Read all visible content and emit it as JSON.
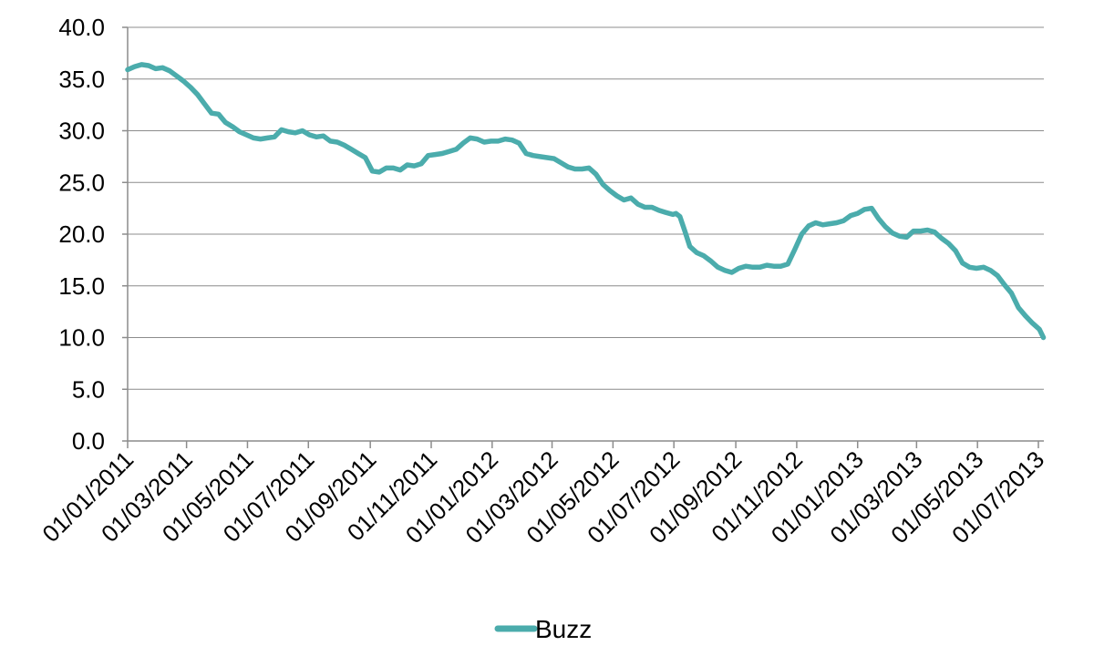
{
  "chart_data": {
    "type": "line",
    "title": "",
    "xlabel": "",
    "ylabel": "",
    "x_type": "date",
    "x_range": [
      "2011-01-01",
      "2013-07-01"
    ],
    "ylim": [
      0,
      40
    ],
    "y_ticks": [
      "0.0",
      "5.0",
      "10.0",
      "15.0",
      "20.0",
      "25.0",
      "30.0",
      "35.0",
      "40.0"
    ],
    "x_ticks": [
      "01/01/2011",
      "01/03/2011",
      "01/05/2011",
      "01/07/2011",
      "01/09/2011",
      "01/11/2011",
      "01/01/2012",
      "01/03/2012",
      "01/05/2012",
      "01/07/2012",
      "01/09/2012",
      "01/11/2012",
      "01/01/2013",
      "01/03/2013",
      "01/05/2013",
      "01/07/2013"
    ],
    "x_tick_dates": [
      "2011-01-01",
      "2011-03-01",
      "2011-05-01",
      "2011-07-01",
      "2011-09-01",
      "2011-11-01",
      "2012-01-01",
      "2012-03-01",
      "2012-05-01",
      "2012-07-01",
      "2012-09-01",
      "2012-11-01",
      "2013-01-01",
      "2013-03-01",
      "2013-05-01",
      "2013-07-01"
    ],
    "grid": true,
    "legend_position": "bottom",
    "series": [
      {
        "name": "Buzz",
        "color": "#4bacac",
        "points": [
          [
            "2011-01-01",
            35.9
          ],
          [
            "2011-01-08",
            36.2
          ],
          [
            "2011-01-15",
            36.4
          ],
          [
            "2011-01-22",
            36.3
          ],
          [
            "2011-01-29",
            36.0
          ],
          [
            "2011-02-05",
            36.1
          ],
          [
            "2011-02-12",
            35.8
          ],
          [
            "2011-02-19",
            35.3
          ],
          [
            "2011-02-26",
            34.8
          ],
          [
            "2011-03-05",
            34.2
          ],
          [
            "2011-03-12",
            33.5
          ],
          [
            "2011-03-19",
            32.6
          ],
          [
            "2011-03-26",
            31.7
          ],
          [
            "2011-04-02",
            31.6
          ],
          [
            "2011-04-09",
            30.8
          ],
          [
            "2011-04-16",
            30.4
          ],
          [
            "2011-04-23",
            29.9
          ],
          [
            "2011-04-30",
            29.6
          ],
          [
            "2011-05-07",
            29.3
          ],
          [
            "2011-05-14",
            29.2
          ],
          [
            "2011-05-21",
            29.3
          ],
          [
            "2011-05-28",
            29.4
          ],
          [
            "2011-06-04",
            30.1
          ],
          [
            "2011-06-11",
            29.9
          ],
          [
            "2011-06-18",
            29.8
          ],
          [
            "2011-06-25",
            30.0
          ],
          [
            "2011-07-02",
            29.6
          ],
          [
            "2011-07-09",
            29.4
          ],
          [
            "2011-07-16",
            29.5
          ],
          [
            "2011-07-23",
            29.0
          ],
          [
            "2011-07-30",
            28.9
          ],
          [
            "2011-08-06",
            28.6
          ],
          [
            "2011-08-13",
            28.2
          ],
          [
            "2011-08-20",
            27.8
          ],
          [
            "2011-08-27",
            27.4
          ],
          [
            "2011-09-03",
            26.1
          ],
          [
            "2011-09-10",
            26.0
          ],
          [
            "2011-09-17",
            26.4
          ],
          [
            "2011-09-24",
            26.4
          ],
          [
            "2011-10-01",
            26.2
          ],
          [
            "2011-10-08",
            26.7
          ],
          [
            "2011-10-15",
            26.6
          ],
          [
            "2011-10-22",
            26.8
          ],
          [
            "2011-10-29",
            27.6
          ],
          [
            "2011-11-05",
            27.7
          ],
          [
            "2011-11-12",
            27.8
          ],
          [
            "2011-11-19",
            28.0
          ],
          [
            "2011-11-26",
            28.2
          ],
          [
            "2011-12-03",
            28.8
          ],
          [
            "2011-12-10",
            29.3
          ],
          [
            "2011-12-17",
            29.2
          ],
          [
            "2011-12-24",
            28.9
          ],
          [
            "2011-12-31",
            29.0
          ],
          [
            "2012-01-07",
            29.0
          ],
          [
            "2012-01-14",
            29.2
          ],
          [
            "2012-01-21",
            29.1
          ],
          [
            "2012-01-28",
            28.8
          ],
          [
            "2012-02-04",
            27.8
          ],
          [
            "2012-02-11",
            27.6
          ],
          [
            "2012-02-18",
            27.5
          ],
          [
            "2012-02-25",
            27.4
          ],
          [
            "2012-03-03",
            27.3
          ],
          [
            "2012-03-10",
            26.9
          ],
          [
            "2012-03-17",
            26.5
          ],
          [
            "2012-03-24",
            26.3
          ],
          [
            "2012-03-31",
            26.3
          ],
          [
            "2012-04-07",
            26.4
          ],
          [
            "2012-04-14",
            25.8
          ],
          [
            "2012-04-21",
            24.8
          ],
          [
            "2012-04-28",
            24.2
          ],
          [
            "2012-05-05",
            23.7
          ],
          [
            "2012-05-12",
            23.3
          ],
          [
            "2012-05-19",
            23.5
          ],
          [
            "2012-05-26",
            22.9
          ],
          [
            "2012-06-02",
            22.6
          ],
          [
            "2012-06-09",
            22.6
          ],
          [
            "2012-06-16",
            22.3
          ],
          [
            "2012-06-23",
            22.1
          ],
          [
            "2012-06-30",
            21.9
          ],
          [
            "2012-07-03",
            22.0
          ],
          [
            "2012-07-07",
            21.7
          ],
          [
            "2012-07-12",
            20.3
          ],
          [
            "2012-07-17",
            18.8
          ],
          [
            "2012-07-24",
            18.2
          ],
          [
            "2012-07-31",
            17.9
          ],
          [
            "2012-08-07",
            17.4
          ],
          [
            "2012-08-14",
            16.8
          ],
          [
            "2012-08-21",
            16.5
          ],
          [
            "2012-08-28",
            16.3
          ],
          [
            "2012-09-04",
            16.7
          ],
          [
            "2012-09-11",
            16.9
          ],
          [
            "2012-09-18",
            16.8
          ],
          [
            "2012-09-25",
            16.8
          ],
          [
            "2012-10-02",
            17.0
          ],
          [
            "2012-10-09",
            16.9
          ],
          [
            "2012-10-16",
            16.9
          ],
          [
            "2012-10-23",
            17.1
          ],
          [
            "2012-10-30",
            18.5
          ],
          [
            "2012-11-06",
            20.0
          ],
          [
            "2012-11-13",
            20.8
          ],
          [
            "2012-11-20",
            21.1
          ],
          [
            "2012-11-27",
            20.9
          ],
          [
            "2012-12-04",
            21.0
          ],
          [
            "2012-12-11",
            21.1
          ],
          [
            "2012-12-18",
            21.3
          ],
          [
            "2012-12-25",
            21.8
          ],
          [
            "2013-01-01",
            22.0
          ],
          [
            "2013-01-08",
            22.4
          ],
          [
            "2013-01-15",
            22.5
          ],
          [
            "2013-01-22",
            21.5
          ],
          [
            "2013-01-29",
            20.7
          ],
          [
            "2013-02-05",
            20.1
          ],
          [
            "2013-02-12",
            19.8
          ],
          [
            "2013-02-19",
            19.7
          ],
          [
            "2013-02-26",
            20.3
          ],
          [
            "2013-03-05",
            20.3
          ],
          [
            "2013-03-12",
            20.4
          ],
          [
            "2013-03-19",
            20.2
          ],
          [
            "2013-03-26",
            19.6
          ],
          [
            "2013-04-02",
            19.1
          ],
          [
            "2013-04-09",
            18.4
          ],
          [
            "2013-04-16",
            17.2
          ],
          [
            "2013-04-23",
            16.8
          ],
          [
            "2013-04-30",
            16.7
          ],
          [
            "2013-05-07",
            16.8
          ],
          [
            "2013-05-14",
            16.5
          ],
          [
            "2013-05-21",
            16.0
          ],
          [
            "2013-05-28",
            15.1
          ],
          [
            "2013-06-04",
            14.3
          ],
          [
            "2013-06-11",
            12.9
          ],
          [
            "2013-06-18",
            12.1
          ],
          [
            "2013-06-25",
            11.4
          ],
          [
            "2013-07-02",
            10.8
          ],
          [
            "2013-07-06",
            10.0
          ]
        ]
      }
    ]
  }
}
